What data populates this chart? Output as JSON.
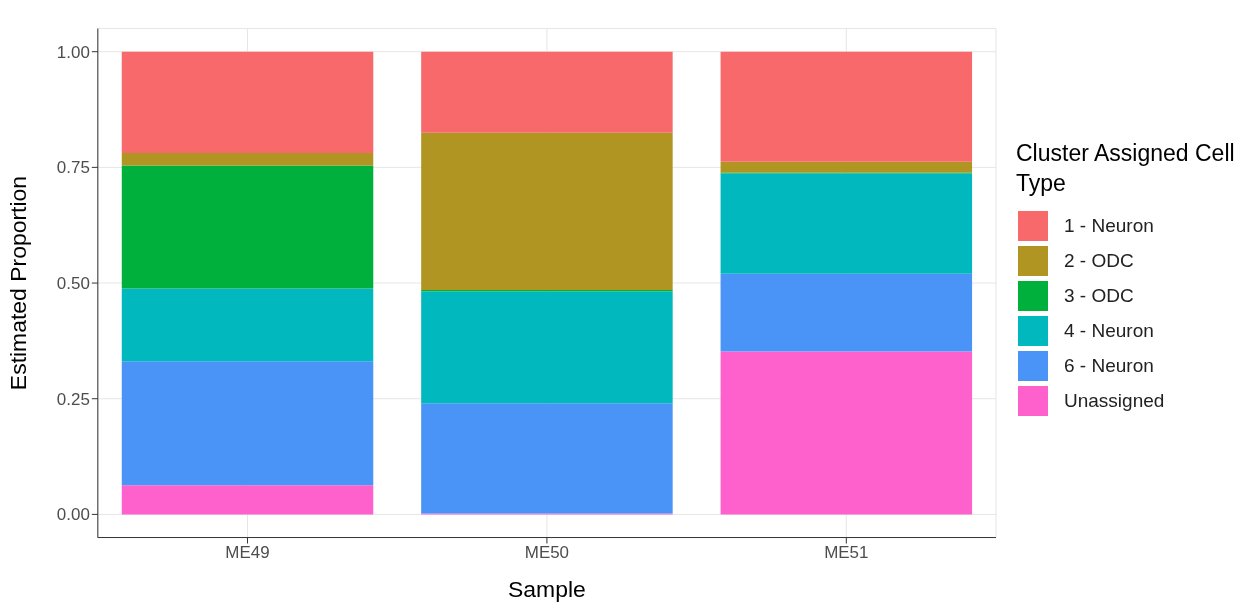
{
  "chart_data": {
    "type": "bar",
    "stacked": true,
    "xlabel": "Sample",
    "ylabel": "Estimated Proportion",
    "legend_title": "Cluster Assigned Cell Type",
    "legend": "right",
    "grid": true,
    "categories": [
      "ME49",
      "ME50",
      "ME51"
    ],
    "ylim": [
      -0.05,
      1.05
    ],
    "yticks": [
      {
        "value": 0,
        "label": "0.00"
      },
      {
        "value": 0.25,
        "label": "0.25"
      },
      {
        "value": 0.5,
        "label": "0.50"
      },
      {
        "value": 0.75,
        "label": "0.75"
      },
      {
        "value": 1,
        "label": "1.00"
      }
    ],
    "series": [
      {
        "name": "Unassigned",
        "color": "#ff61cc",
        "values": [
          0.063,
          0.002,
          0.352
        ]
      },
      {
        "name": "6 - Neuron",
        "color": "#4a94f7",
        "values": [
          0.268,
          0.238,
          0.168
        ]
      },
      {
        "name": "4 - Neuron",
        "color": "#00b8be",
        "values": [
          0.157,
          0.242,
          0.217
        ]
      },
      {
        "name": "3 - ODC",
        "color": "#00b03c",
        "values": [
          0.266,
          0.003,
          0.002
        ]
      },
      {
        "name": "2 - ODC",
        "color": "#b09522",
        "values": [
          0.027,
          0.34,
          0.023
        ]
      },
      {
        "name": "1 - Neuron",
        "color": "#f8696b",
        "values": [
          0.219,
          0.175,
          0.238
        ]
      }
    ]
  }
}
